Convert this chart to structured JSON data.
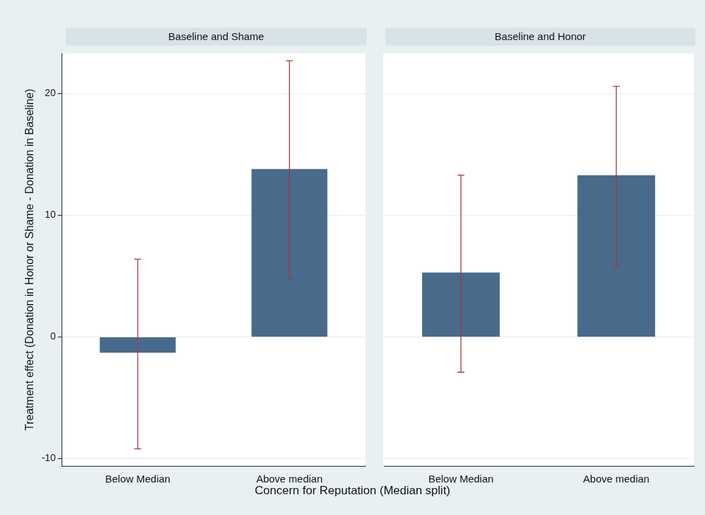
{
  "chart_data": [
    {
      "type": "bar",
      "title": "Baseline and Shame",
      "ylabel": "Treatment effect (Donation in Honor or Shame - Donation in Baseline)",
      "xlabel": "Concern for Reputation (Median split)",
      "categories": [
        "Below Median",
        "Above median"
      ],
      "values": [
        -1.3,
        13.8
      ],
      "errors": [
        [
          -9.2,
          6.4
        ],
        [
          4.8,
          22.7
        ]
      ],
      "color": "#486a8b",
      "ylim": [
        -10.6,
        23.3
      ],
      "yticks": [
        -10,
        0,
        10,
        20
      ],
      "grid": "y"
    },
    {
      "type": "bar",
      "title": "Baseline and Honor",
      "categories": [
        "Below Median",
        "Above median"
      ],
      "values": [
        5.3,
        13.3
      ],
      "errors": [
        [
          -2.9,
          13.3
        ],
        [
          5.8,
          20.6
        ]
      ],
      "color": "#486a8b",
      "ylim": [
        -10.6,
        23.3
      ],
      "yticks": [
        -10,
        0,
        10,
        20
      ],
      "grid": "y",
      "tick_labels": "x"
    }
  ]
}
